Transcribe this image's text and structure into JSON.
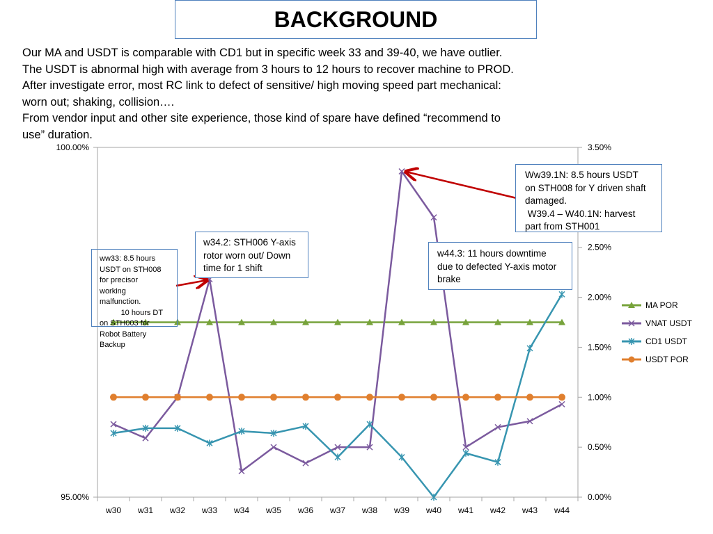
{
  "title": "BACKGROUND",
  "intro_lines": [
    "Our MA and USDT is comparable with CD1 but in specific week 33 and 39-40, we have outlier.",
    "The USDT is abnormal high with average from 3 hours to 12 hours to recover machine to PROD.",
    "After investigate error, most RC link to defect of sensitive/ high moving speed part mechanical:",
    "worn out; shaking, collision….",
    "From vendor input and other site experience, those kind of spare have defined “recommend to",
    "use” duration."
  ],
  "annotations": {
    "ww33": [
      "ww33: 8.5 hours",
      "USDT on STH008",
      "for precisor",
      "working",
      "malfunction.",
      "          10 hours DT",
      "on STH003 for",
      "Robot Battery",
      "Backup"
    ],
    "w34": [
      "w34.2: STH006 Y-axis",
      "rotor worn out/ Down",
      "time for 1 shift"
    ],
    "w44": [
      "w44.3: 11 hours downtime",
      "due to defected Y-axis motor",
      "brake"
    ],
    "w39": [
      "Ww39.1N: 8.5 hours USDT",
      "on STH008 for Y driven shaft",
      "damaged.",
      " W39.4 – W40.1N: harvest",
      "part from STH001"
    ]
  },
  "chart_data": {
    "type": "line",
    "categories": [
      "w30",
      "w31",
      "w32",
      "w33",
      "w34",
      "w35",
      "w36",
      "w37",
      "w38",
      "w39",
      "w40",
      "w41",
      "w42",
      "w43",
      "w44"
    ],
    "y_left": {
      "min": 95,
      "max": 100,
      "tick_labels": [
        "100.00%",
        "95.00%"
      ]
    },
    "y_right": {
      "min": 0,
      "max": 3.5,
      "step": 0.5,
      "tick_labels": [
        "0.00%",
        "0.50%",
        "1.00%",
        "1.50%",
        "2.00%",
        "2.50%",
        "3.00%",
        "3.50%"
      ]
    },
    "legend_position": "right",
    "series": [
      {
        "name": "MA POR",
        "axis": "right",
        "marker": "triangle",
        "color": "#77a33b",
        "values": [
          1.75,
          1.75,
          1.75,
          1.75,
          1.75,
          1.75,
          1.75,
          1.75,
          1.75,
          1.75,
          1.75,
          1.75,
          1.75,
          1.75,
          1.75
        ]
      },
      {
        "name": "VNAT USDT",
        "axis": "right",
        "marker": "x",
        "color": "#7b5a9e",
        "values": [
          0.73,
          0.59,
          1.0,
          2.18,
          0.26,
          0.5,
          0.34,
          0.5,
          0.5,
          3.26,
          2.8,
          0.5,
          0.7,
          0.76,
          0.93
        ]
      },
      {
        "name": "CD1 USDT",
        "axis": "right",
        "marker": "star",
        "color": "#3795b0",
        "values": [
          0.64,
          0.69,
          0.69,
          0.54,
          0.66,
          0.64,
          0.71,
          0.4,
          0.73,
          0.4,
          0.0,
          0.44,
          0.35,
          1.49,
          2.03
        ]
      },
      {
        "name": "USDT POR",
        "axis": "right",
        "marker": "circle",
        "color": "#e07f2e",
        "values": [
          1.0,
          1.0,
          1.0,
          1.0,
          1.0,
          1.0,
          1.0,
          1.0,
          1.0,
          1.0,
          1.0,
          1.0,
          1.0,
          1.0,
          1.0
        ]
      }
    ]
  }
}
